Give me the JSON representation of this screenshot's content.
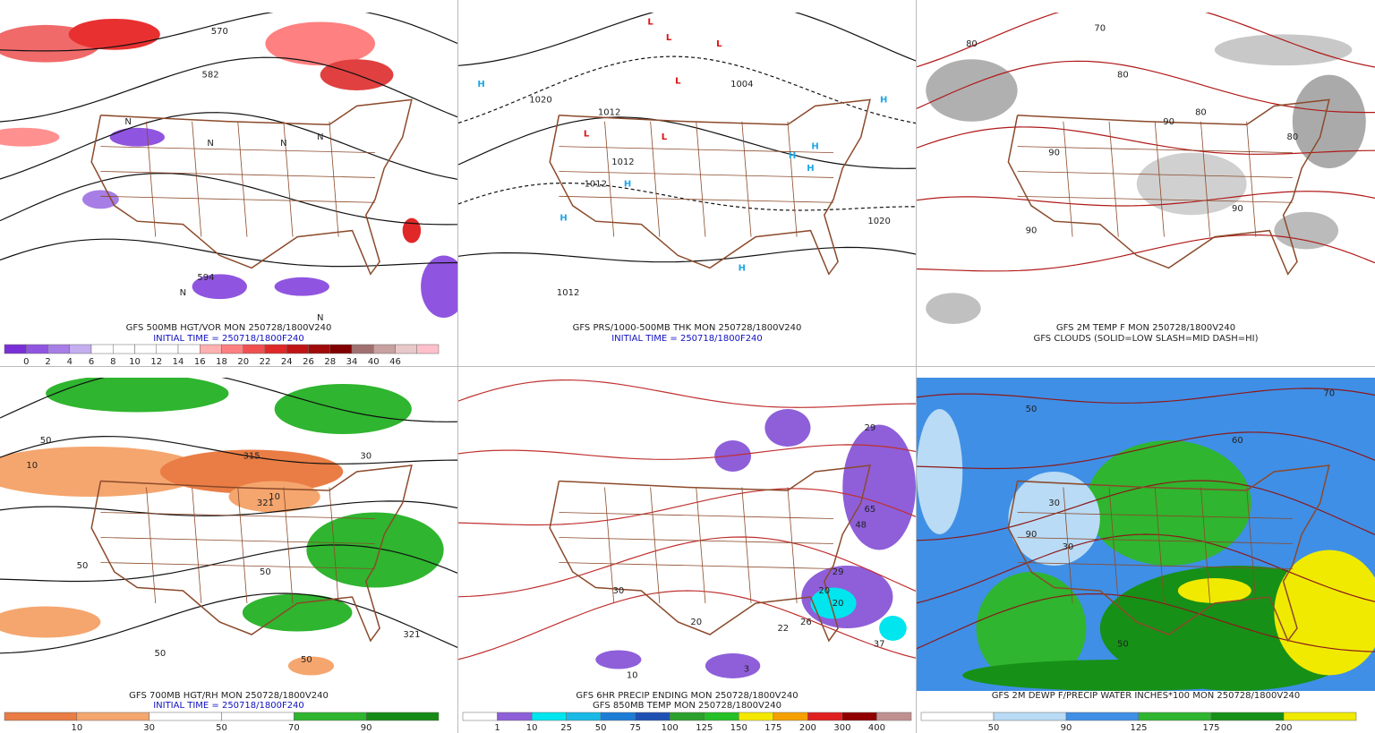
{
  "panels": [
    {
      "caption": [
        "GFS 500MB HGT/VOR MON 250728/1800V240",
        "INITIAL TIME = 250718/1800F240"
      ],
      "map_labels": [
        "570",
        "582",
        "594",
        "N",
        "N",
        "N",
        "N",
        "N",
        "N"
      ],
      "colorbar": {
        "colors": [
          "#7a2fd6",
          "#9055e0",
          "#a67ee6",
          "#c4aef0",
          "#ffffff",
          "#ffffff",
          "#ffffff",
          "#ffffff",
          "#ffffff",
          "#ffb0b0",
          "#ff8080",
          "#f05050",
          "#e02828",
          "#c01414",
          "#a00a0a",
          "#800000",
          "#a07070",
          "#c8a0a0",
          "#e8c8c8",
          "#ffc0cb"
        ],
        "labels": [
          "0",
          "2",
          "4",
          "6",
          "8",
          "10",
          "12",
          "14",
          "16",
          "18",
          "20",
          "22",
          "24",
          "26",
          "28",
          "34",
          "40",
          "46"
        ]
      }
    },
    {
      "caption": [
        "GFS PRS/1000-500MB THK MON 250728/1800V240",
        "INITIAL TIME = 250718/1800F240"
      ],
      "map_labels": [
        "L",
        "L",
        "L",
        "L",
        "L",
        "L",
        "H",
        "H",
        "H",
        "H",
        "H",
        "H",
        "H",
        "H",
        "1020",
        "1012",
        "1004",
        "1012",
        "1012",
        "1020",
        "1012"
      ]
    },
    {
      "caption": [
        "GFS 2M TEMP F MON 250728/1800V240",
        "GFS CLOUDS (SOLID=LOW SLASH=MID DASH=HI)"
      ],
      "map_labels": [
        "80",
        "80",
        "90",
        "90",
        "70",
        "80",
        "90",
        "80",
        "90"
      ]
    },
    {
      "caption": [
        "GFS 700MB HGT/RH MON 250728/1800V240",
        "INITIAL TIME = 250718/1800F240"
      ],
      "map_labels": [
        "10",
        "50",
        "315",
        "321",
        "10",
        "50",
        "50",
        "50",
        "30",
        "321",
        "50"
      ],
      "colorbar": {
        "colors": [
          "#e97d45",
          "#f5a66e",
          "#ffffff",
          "#ffffff",
          "#2fb52f",
          "#168a16"
        ],
        "labels": [
          "10",
          "30",
          "50",
          "70",
          "90"
        ]
      }
    },
    {
      "caption": [
        "GFS 6HR PRECIP ENDING MON 250728/1800V240",
        "GFS 850MB TEMP MON 250728/1800V240"
      ],
      "map_labels": [
        "29",
        "65",
        "48",
        "29",
        "20",
        "20",
        "22",
        "26",
        "37",
        "10",
        "3",
        "30",
        "20"
      ],
      "colorbar": {
        "colors": [
          "#ffffff",
          "#8e5fd9",
          "#00e5ee",
          "#1ab9e6",
          "#1d7dd6",
          "#1e50b4",
          "#2ca02c",
          "#25c025",
          "#f5e800",
          "#f5a000",
          "#e02020",
          "#900000",
          "#c09090"
        ],
        "labels": [
          "1",
          "10",
          "25",
          "50",
          "75",
          "100",
          "125",
          "150",
          "175",
          "200",
          "300",
          "400"
        ]
      }
    },
    {
      "caption": [
        "GFS 2M DEWP F/PRECIP WATER INCHES*100 MON 250728/1800V240"
      ],
      "map_labels": [
        "50",
        "30",
        "90",
        "30",
        "60",
        "70",
        "50"
      ],
      "colorbar": {
        "colors": [
          "#ffffff",
          "#b9dbf5",
          "#3f8fe6",
          "#2fb52f",
          "#179017",
          "#f0ea00"
        ],
        "labels": [
          "50",
          "90",
          "125",
          "175",
          "200"
        ]
      }
    }
  ]
}
